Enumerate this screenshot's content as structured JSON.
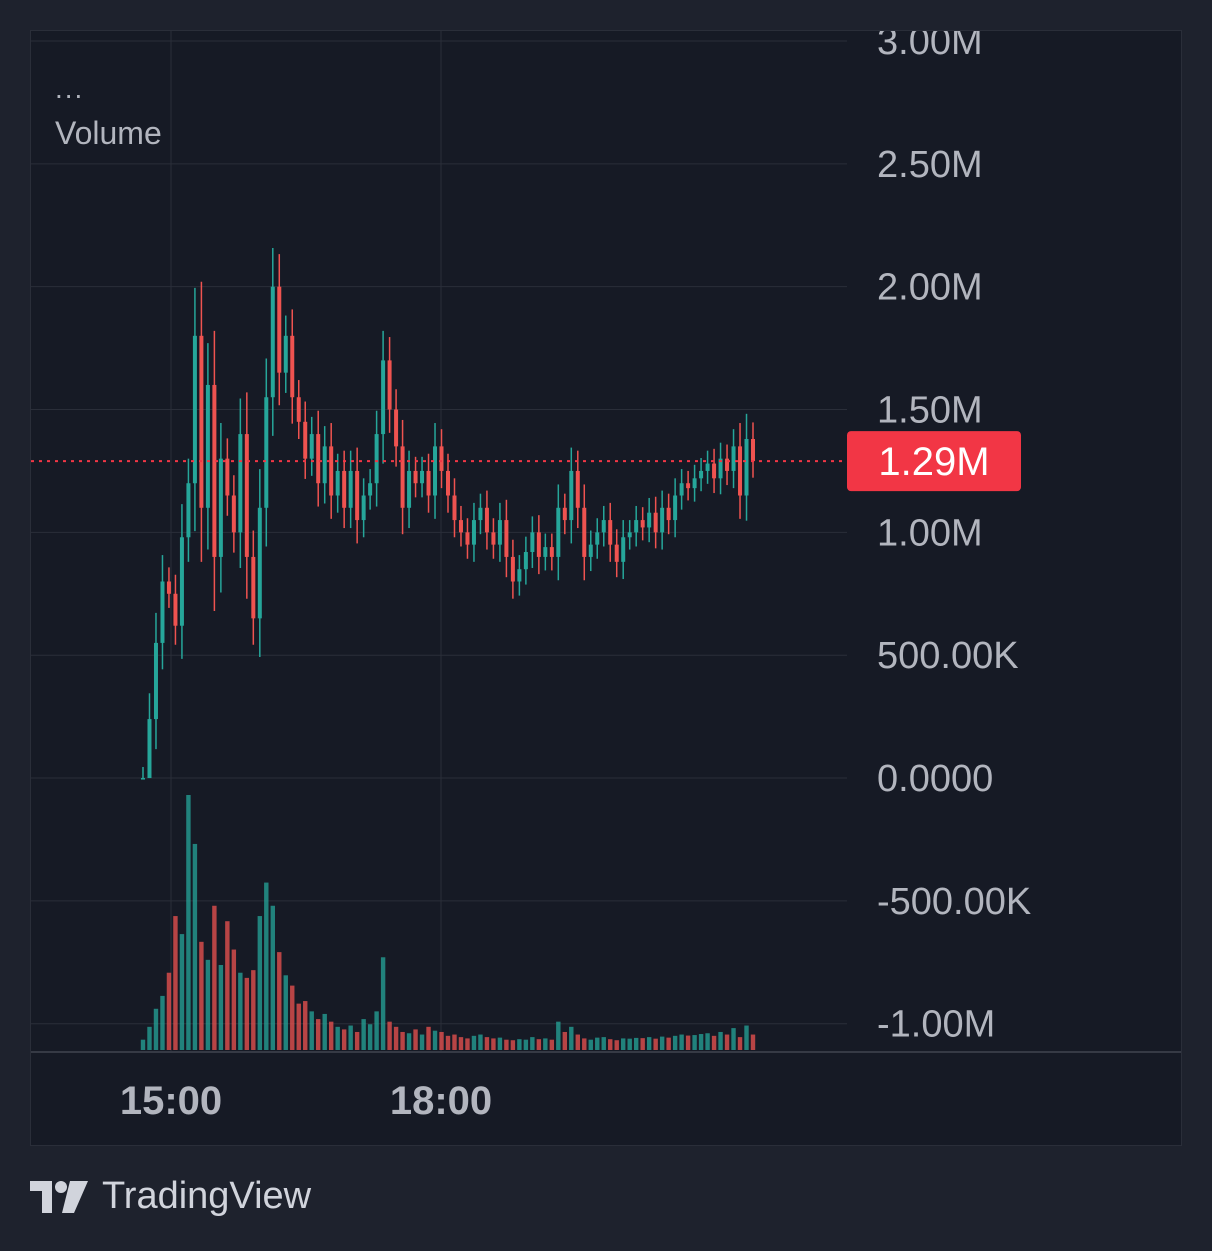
{
  "legend": {
    "dots": "...",
    "label": "Volume"
  },
  "brand": {
    "name": "TradingView",
    "icon": "tradingview-logo-icon"
  },
  "colors": {
    "background": "#1e222d",
    "pane": "#161a25",
    "grid": "#2a2e39",
    "up": "#26a69a",
    "down": "#ef5350",
    "axis_text": "#b2b5be",
    "price_label_bg": "#f23645"
  },
  "chart_data": {
    "type": "candlestick",
    "title": "",
    "xlabel": "",
    "ylabel": "",
    "y_ticks": [
      "3.00M",
      "2.50M",
      "2.00M",
      "1.50M",
      "1.00M",
      "500.00K",
      "0.0000",
      "-500.00K",
      "-1.00M"
    ],
    "y_tick_values": [
      3000000,
      2500000,
      2000000,
      1500000,
      1000000,
      500000,
      0,
      -500000,
      -1000000
    ],
    "x_ticks": [
      "15:00",
      "18:00"
    ],
    "ylim": [
      -1050000,
      3000000
    ],
    "last_price": 1290000,
    "last_price_label": "1.29M",
    "grid": true,
    "series": [
      {
        "name": "Volume",
        "values": [
          0,
          240000,
          550000,
          800000,
          750000,
          620000,
          980000,
          1200000,
          1800000,
          1100000,
          1600000,
          900000,
          1300000,
          1150000,
          1000000,
          1400000,
          900000,
          650000,
          1100000,
          1550000,
          2000000,
          1650000,
          1800000,
          1550000,
          1450000,
          1300000,
          1400000,
          1200000,
          1350000,
          1150000,
          1250000,
          1100000,
          1250000,
          1050000,
          1150000,
          1200000,
          1400000,
          1700000,
          1500000,
          1350000,
          1100000,
          1250000,
          1200000,
          1250000,
          1150000,
          1350000,
          1250000,
          1150000,
          1050000,
          1000000,
          950000,
          1050000,
          1100000,
          1000000,
          950000,
          1050000,
          900000,
          800000,
          850000,
          920000,
          1000000,
          900000,
          940000,
          900000,
          1100000,
          1050000,
          1250000,
          1100000,
          900000,
          950000,
          1000000,
          1050000,
          950000,
          880000,
          980000,
          1000000,
          1050000,
          1020000,
          1080000,
          1000000,
          1100000,
          1050000,
          1150000,
          1200000,
          1180000,
          1220000,
          1250000,
          1280000,
          1220000,
          1300000,
          1250000,
          1350000,
          1150000,
          1380000,
          1290000
        ]
      }
    ],
    "volume_bars": [
      40000,
      90000,
      160000,
      210000,
      300000,
      520000,
      450000,
      990000,
      800000,
      420000,
      350000,
      560000,
      330000,
      500000,
      390000,
      300000,
      280000,
      310000,
      520000,
      650000,
      560000,
      380000,
      290000,
      250000,
      180000,
      190000,
      150000,
      120000,
      140000,
      110000,
      90000,
      80000,
      95000,
      70000,
      120000,
      100000,
      150000,
      360000,
      110000,
      90000,
      70000,
      65000,
      80000,
      60000,
      90000,
      75000,
      70000,
      55000,
      60000,
      50000,
      45000,
      55000,
      60000,
      50000,
      45000,
      48000,
      40000,
      38000,
      42000,
      40000,
      50000,
      42000,
      45000,
      40000,
      110000,
      70000,
      90000,
      60000,
      45000,
      40000,
      48000,
      50000,
      42000,
      38000,
      45000,
      44000,
      47000,
      46000,
      50000,
      44000,
      52000,
      48000,
      55000,
      60000,
      56000,
      58000,
      62000,
      65000,
      55000,
      70000,
      60000,
      85000,
      50000,
      95000,
      60000
    ]
  }
}
